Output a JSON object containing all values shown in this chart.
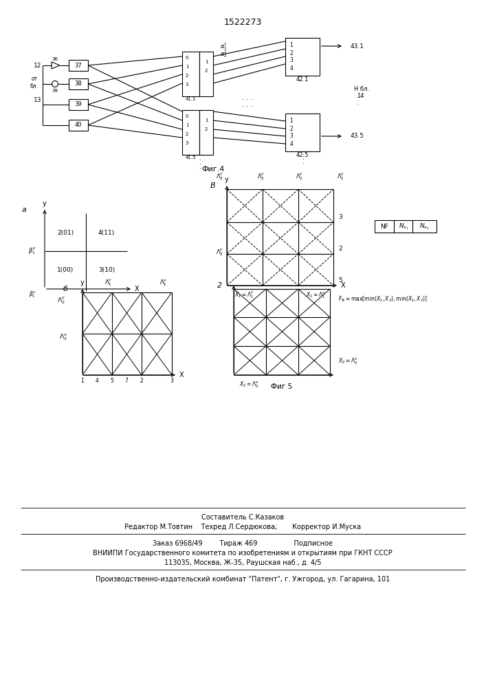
{
  "title": "1522273",
  "fig4_caption": "Фиг.4",
  "fig5_caption": "Фиг 5",
  "footer_line1": "Составитель С.Казаков",
  "footer_line2": "Редактор М.Товтин    Техред Л.Сердюкова;       Корректор И.Муска",
  "footer_line3": "Заказ 6968/49        Тираж 469                 Подписное",
  "footer_line4": "ВНИИПИ Государственного комитета по изобретениям и открытиям при ГКНТ СССР",
  "footer_line5": "113035, Москва, Ж-35, Раушская наб., д. 4/5",
  "footer_line6": "Производственно-издательский комбинат \"Патент\", г. Ужгород, ул. Гагарина, 101"
}
